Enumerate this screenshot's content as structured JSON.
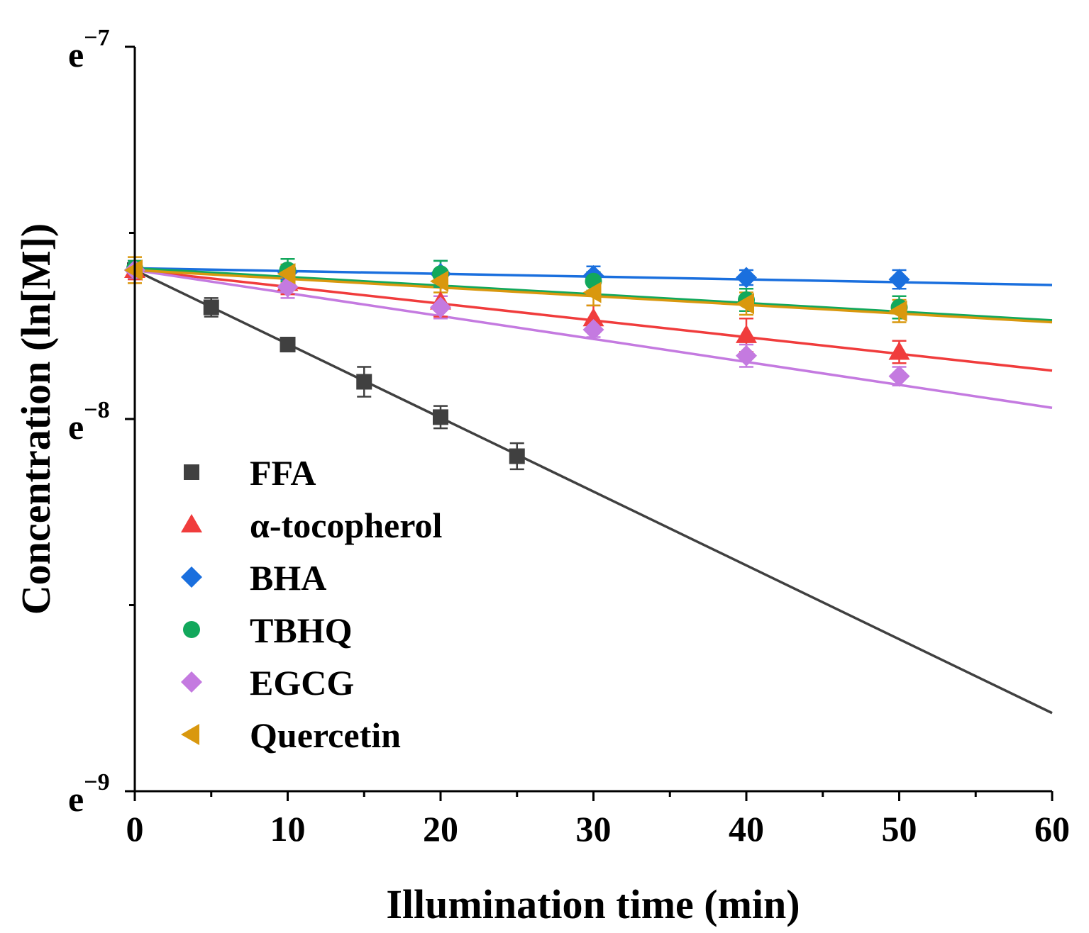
{
  "chart_data": {
    "type": "scatter",
    "xlabel": "Illumination time (min)",
    "ylabel": "Concentration (ln[M])",
    "xlim": [
      0,
      60
    ],
    "ylim": [
      -9,
      -7
    ],
    "x_ticks": [
      0,
      10,
      20,
      30,
      40,
      50,
      60
    ],
    "x_minor_ticks": [
      5,
      15,
      25,
      35,
      45,
      55
    ],
    "y_ticks": [
      {
        "value": -9,
        "base": "e",
        "exp": "−9"
      },
      {
        "value": -8,
        "base": "e",
        "exp": "−8"
      },
      {
        "value": -7,
        "base": "e",
        "exp": "−7"
      }
    ],
    "y_minor_ticks": [
      -8.5,
      -7.5
    ],
    "legend_position": "bottom-left",
    "series": [
      {
        "name": "FFA",
        "color": "#404040",
        "marker": "square",
        "points": [
          {
            "x": 0,
            "y": -7.6,
            "err": 0.02
          },
          {
            "x": 5,
            "y": -7.7,
            "err": 0.025
          },
          {
            "x": 10,
            "y": -7.8,
            "err": 0.015
          },
          {
            "x": 15,
            "y": -7.9,
            "err": 0.04
          },
          {
            "x": 20,
            "y": -7.995,
            "err": 0.03
          },
          {
            "x": 25,
            "y": -8.1,
            "err": 0.035
          }
        ],
        "fit": {
          "x": [
            0,
            60
          ],
          "y": [
            -7.6,
            -8.79
          ]
        }
      },
      {
        "name": "α-tocopherol",
        "color": "#f03c3c",
        "marker": "triangle-up",
        "points": [
          {
            "x": 0,
            "y": -7.6,
            "err": 0.025
          },
          {
            "x": 10,
            "y": -7.635,
            "err": 0.03
          },
          {
            "x": 20,
            "y": -7.685,
            "err": 0.04
          },
          {
            "x": 30,
            "y": -7.73,
            "err": 0.035
          },
          {
            "x": 40,
            "y": -7.775,
            "err": 0.045
          },
          {
            "x": 50,
            "y": -7.82,
            "err": 0.03
          }
        ],
        "fit": {
          "x": [
            0,
            60
          ],
          "y": [
            -7.6,
            -7.87
          ]
        }
      },
      {
        "name": "BHA",
        "color": "#1a6fde",
        "marker": "diamond",
        "points": [
          {
            "x": 0,
            "y": -7.6,
            "err": 0.02
          },
          {
            "x": 10,
            "y": -7.605,
            "err": 0.02
          },
          {
            "x": 20,
            "y": -7.61,
            "err": 0.035
          },
          {
            "x": 30,
            "y": -7.615,
            "err": 0.025
          },
          {
            "x": 40,
            "y": -7.62,
            "err": 0.02
          },
          {
            "x": 50,
            "y": -7.625,
            "err": 0.025
          }
        ],
        "fit": {
          "x": [
            0,
            60
          ],
          "y": [
            -7.595,
            -7.64
          ]
        }
      },
      {
        "name": "TBHQ",
        "color": "#12a85c",
        "marker": "circle",
        "points": [
          {
            "x": 0,
            "y": -7.595,
            "err": 0.02
          },
          {
            "x": 10,
            "y": -7.6,
            "err": 0.03
          },
          {
            "x": 20,
            "y": -7.61,
            "err": 0.035
          },
          {
            "x": 30,
            "y": -7.63,
            "err": 0.025
          },
          {
            "x": 40,
            "y": -7.68,
            "err": 0.03
          },
          {
            "x": 50,
            "y": -7.7,
            "err": 0.03
          }
        ],
        "fit": {
          "x": [
            0,
            60
          ],
          "y": [
            -7.595,
            -7.735
          ]
        }
      },
      {
        "name": "EGCG",
        "color": "#c47ae0",
        "marker": "diamond",
        "points": [
          {
            "x": 0,
            "y": -7.6,
            "err": 0.02
          },
          {
            "x": 10,
            "y": -7.645,
            "err": 0.03
          },
          {
            "x": 20,
            "y": -7.7,
            "err": 0.03
          },
          {
            "x": 30,
            "y": -7.76,
            "err": 0.02
          },
          {
            "x": 40,
            "y": -7.83,
            "err": 0.03
          },
          {
            "x": 50,
            "y": -7.885,
            "err": 0.025
          }
        ],
        "fit": {
          "x": [
            0,
            60
          ],
          "y": [
            -7.6,
            -7.97
          ]
        }
      },
      {
        "name": "Quercetin",
        "color": "#d9980e",
        "marker": "triangle-left",
        "points": [
          {
            "x": 0,
            "y": -7.6,
            "err": 0.035
          },
          {
            "x": 10,
            "y": -7.61,
            "err": 0.025
          },
          {
            "x": 20,
            "y": -7.63,
            "err": 0.03
          },
          {
            "x": 30,
            "y": -7.66,
            "err": 0.035
          },
          {
            "x": 40,
            "y": -7.69,
            "err": 0.03
          },
          {
            "x": 50,
            "y": -7.71,
            "err": 0.03
          }
        ],
        "fit": {
          "x": [
            0,
            60
          ],
          "y": [
            -7.6,
            -7.74
          ]
        }
      }
    ]
  }
}
